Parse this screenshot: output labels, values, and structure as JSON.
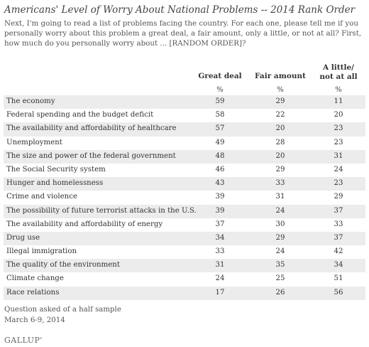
{
  "title": "Americans' Level of Worry About National Problems -- 2014 Rank Order",
  "subtitle": "Next, I'm going to read a list of problems facing the country. For each one, please tell me if you personally worry about this problem a great deal, a fair amount, only a little, or not at all? First, how much do you personally worry about ... [RANDOM ORDER]?",
  "columns": {
    "great_deal": "Great deal",
    "fair_amount": "Fair amount",
    "little_line1": "A little/",
    "little_line2": "not at all",
    "unit": "%"
  },
  "chart_data": {
    "type": "table",
    "title": "Americans' Level of Worry About National Problems -- 2014 Rank Order",
    "columns": [
      "Great deal",
      "Fair amount",
      "A little/ not at all"
    ],
    "unit": "%",
    "rows": [
      {
        "label": "The economy",
        "values": [
          59,
          29,
          11
        ]
      },
      {
        "label": "Federal spending and the budget deficit",
        "values": [
          58,
          22,
          20
        ]
      },
      {
        "label": "The availability and affordability of healthcare",
        "values": [
          57,
          20,
          23
        ]
      },
      {
        "label": "Unemployment",
        "values": [
          49,
          28,
          23
        ]
      },
      {
        "label": "The size and power of the federal government",
        "values": [
          48,
          20,
          31
        ]
      },
      {
        "label": "The Social Security system",
        "values": [
          46,
          29,
          24
        ]
      },
      {
        "label": "Hunger and homelessness",
        "values": [
          43,
          33,
          23
        ]
      },
      {
        "label": "Crime and violence",
        "values": [
          39,
          31,
          29
        ]
      },
      {
        "label": "The possibility of future terrorist attacks in the U.S.",
        "values": [
          39,
          24,
          37
        ]
      },
      {
        "label": "The availability and affordability of energy",
        "values": [
          37,
          30,
          33
        ]
      },
      {
        "label": "Drug use",
        "values": [
          34,
          29,
          37
        ]
      },
      {
        "label": "Illegal immigration",
        "values": [
          33,
          24,
          42
        ]
      },
      {
        "label": "The quality of the environment",
        "values": [
          31,
          35,
          34
        ]
      },
      {
        "label": "Climate change",
        "values": [
          24,
          25,
          51
        ]
      },
      {
        "label": "Race relations",
        "values": [
          17,
          26,
          56
        ]
      }
    ]
  },
  "footnote": {
    "line1": "Question asked of a half sample",
    "line2": "March 6-9, 2014"
  },
  "logo": "GALLUP'",
  "colors": {
    "row_shade": "#ececec",
    "text": "#333333"
  }
}
